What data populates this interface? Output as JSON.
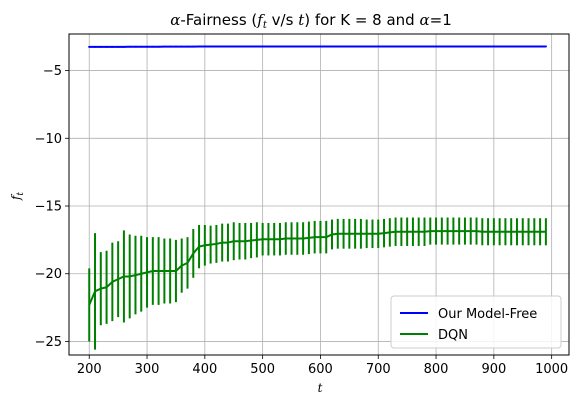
{
  "chart_data": {
    "type": "line",
    "title_parts": {
      "alpha1": "α",
      "text1": "-Fairness (",
      "ft_f": "f",
      "ft_sub": "t",
      "text2": " v/s ",
      "t": "t",
      "text3": ") for K = 8 and ",
      "alpha2": "α",
      "text4": "=1"
    },
    "xlabel": "t",
    "ylabel_main": "f",
    "ylabel_sub": "t",
    "xlim": [
      165,
      1030
    ],
    "ylim": [
      -26,
      -2.3
    ],
    "xticks": [
      200,
      300,
      400,
      500,
      600,
      700,
      800,
      900,
      1000
    ],
    "yticks": [
      -5,
      -10,
      -15,
      -20,
      -25
    ],
    "xtick_labels": [
      "200",
      "300",
      "400",
      "500",
      "600",
      "700",
      "800",
      "900",
      "1000"
    ],
    "ytick_labels": [
      "−5",
      "−10",
      "−15",
      "−20",
      "−25"
    ],
    "grid": true,
    "legend_position": "lower-right",
    "series": [
      {
        "name": "Our Model-Free",
        "color": "#0000ff",
        "x_start": 200,
        "x_step": 10,
        "values": [
          -3.25,
          -3.25,
          -3.25,
          -3.25,
          -3.25,
          -3.25,
          -3.25,
          -3.24,
          -3.24,
          -3.24,
          -3.24,
          -3.24,
          -3.24,
          -3.23,
          -3.23,
          -3.23,
          -3.23,
          -3.23,
          -3.23,
          -3.22,
          -3.22,
          -3.22,
          -3.22,
          -3.22,
          -3.22,
          -3.22,
          -3.22,
          -3.22,
          -3.22,
          -3.22,
          -3.22,
          -3.22,
          -3.22,
          -3.22,
          -3.22,
          -3.22,
          -3.22,
          -3.22,
          -3.22,
          -3.22,
          -3.22,
          -3.22,
          -3.22,
          -3.22,
          -3.22,
          -3.22,
          -3.22,
          -3.22,
          -3.22,
          -3.22,
          -3.22,
          -3.22,
          -3.22,
          -3.22,
          -3.22,
          -3.22,
          -3.22,
          -3.22,
          -3.22,
          -3.22,
          -3.22,
          -3.22,
          -3.22,
          -3.22,
          -3.22,
          -3.22,
          -3.22,
          -3.22,
          -3.22,
          -3.22,
          -3.22,
          -3.22,
          -3.22,
          -3.22,
          -3.22,
          -3.22,
          -3.22,
          -3.22,
          -3.22,
          -3.22
        ],
        "error": [
          0.06,
          0.06,
          0.06,
          0.06,
          0.06,
          0.06,
          0.06,
          0.06,
          0.06,
          0.06,
          0.06,
          0.06,
          0.06,
          0.06,
          0.06,
          0.06,
          0.06,
          0.06,
          0.06,
          0.06,
          0.06,
          0.06,
          0.06,
          0.06,
          0.06,
          0.06,
          0.06,
          0.06,
          0.06,
          0.06,
          0.06,
          0.06,
          0.06,
          0.06,
          0.06,
          0.06,
          0.06,
          0.06,
          0.06,
          0.06,
          0.06,
          0.06,
          0.06,
          0.06,
          0.06,
          0.06,
          0.06,
          0.06,
          0.06,
          0.06,
          0.06,
          0.06,
          0.06,
          0.06,
          0.06,
          0.06,
          0.06,
          0.06,
          0.06,
          0.06,
          0.06,
          0.06,
          0.06,
          0.06,
          0.06,
          0.06,
          0.06,
          0.06,
          0.06,
          0.06,
          0.06,
          0.06,
          0.06,
          0.06,
          0.06,
          0.06,
          0.06,
          0.06,
          0.06,
          0.06
        ]
      },
      {
        "name": "DQN",
        "color": "#008000",
        "x_start": 200,
        "x_step": 10,
        "values": [
          -22.3,
          -21.3,
          -21.1,
          -21.0,
          -20.6,
          -20.4,
          -20.2,
          -20.2,
          -20.1,
          -20.0,
          -19.9,
          -19.8,
          -19.8,
          -19.8,
          -19.8,
          -19.8,
          -19.4,
          -19.2,
          -18.5,
          -18.0,
          -17.9,
          -17.85,
          -17.8,
          -17.7,
          -17.7,
          -17.6,
          -17.6,
          -17.6,
          -17.55,
          -17.5,
          -17.45,
          -17.45,
          -17.45,
          -17.45,
          -17.4,
          -17.4,
          -17.4,
          -17.4,
          -17.35,
          -17.3,
          -17.3,
          -17.3,
          -17.1,
          -17.05,
          -17.05,
          -17.05,
          -17.05,
          -17.05,
          -17.05,
          -17.05,
          -17.05,
          -17.0,
          -16.95,
          -16.9,
          -16.9,
          -16.9,
          -16.9,
          -16.9,
          -16.9,
          -16.85,
          -16.85,
          -16.85,
          -16.85,
          -16.85,
          -16.85,
          -16.85,
          -16.85,
          -16.85,
          -16.9,
          -16.9,
          -16.9,
          -16.9,
          -16.9,
          -16.9,
          -16.9,
          -16.9,
          -16.9,
          -16.9,
          -16.9,
          -16.9
        ],
        "error": [
          2.7,
          4.3,
          2.7,
          2.7,
          2.9,
          2.8,
          3.4,
          3.1,
          2.9,
          2.8,
          2.6,
          2.5,
          2.5,
          2.4,
          2.4,
          2.3,
          2.0,
          1.9,
          1.8,
          1.6,
          1.5,
          1.4,
          1.4,
          1.4,
          1.4,
          1.4,
          1.35,
          1.35,
          1.3,
          1.3,
          1.2,
          1.2,
          1.2,
          1.2,
          1.2,
          1.2,
          1.2,
          1.2,
          1.2,
          1.2,
          1.2,
          1.2,
          1.1,
          1.1,
          1.1,
          1.1,
          1.1,
          1.1,
          1.05,
          1.05,
          1.05,
          1.05,
          1.05,
          1.05,
          1.05,
          1.05,
          1.05,
          1.05,
          1.05,
          1.0,
          1.0,
          1.0,
          1.0,
          1.0,
          1.0,
          1.0,
          1.0,
          1.0,
          1.0,
          1.0,
          1.0,
          1.0,
          1.0,
          1.0,
          1.0,
          1.0,
          1.0,
          1.0,
          1.0,
          1.0
        ]
      }
    ]
  }
}
